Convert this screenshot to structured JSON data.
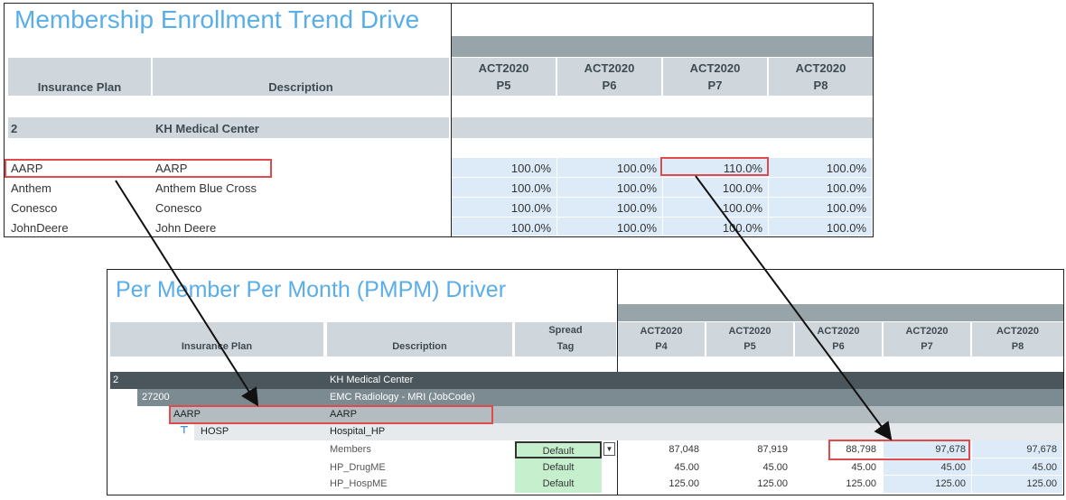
{
  "top": {
    "title": "Membership Enrollment Trend Drive",
    "col_plan": "Insurance Plan",
    "col_desc": "Description",
    "periods": [
      {
        "l1": "ACT2020",
        "l2": "P5"
      },
      {
        "l1": "ACT2020",
        "l2": "P6"
      },
      {
        "l1": "ACT2020",
        "l2": "P7"
      },
      {
        "l1": "ACT2020",
        "l2": "P8"
      }
    ],
    "group": {
      "code": "2",
      "name": "KH Medical Center"
    },
    "rows": [
      {
        "plan": "AARP",
        "desc": "AARP",
        "vals": [
          "100.0%",
          "100.0%",
          "110.0%",
          "100.0%"
        ]
      },
      {
        "plan": "Anthem",
        "desc": "Anthem Blue Cross",
        "vals": [
          "100.0%",
          "100.0%",
          "100.0%",
          "100.0%"
        ]
      },
      {
        "plan": "Conesco",
        "desc": "Conesco",
        "vals": [
          "100.0%",
          "100.0%",
          "100.0%",
          "100.0%"
        ]
      },
      {
        "plan": "JohnDeere",
        "desc": "John Deere",
        "vals": [
          "100.0%",
          "100.0%",
          "100.0%",
          "100.0%"
        ]
      }
    ]
  },
  "bottom": {
    "title": "Per Member Per Month (PMPM) Driver",
    "col_plan": "Insurance Plan",
    "col_desc": "Description",
    "col_spread_1": "Spread",
    "col_spread_2": "Tag",
    "periods": [
      {
        "l1": "ACT2020",
        "l2": "P4"
      },
      {
        "l1": "ACT2020",
        "l2": "P5"
      },
      {
        "l1": "ACT2020",
        "l2": "P6"
      },
      {
        "l1": "ACT2020",
        "l2": "P7"
      },
      {
        "l1": "ACT2020",
        "l2": "P8"
      }
    ],
    "level1": {
      "code": "2",
      "name": "KH Medical Center"
    },
    "level2": {
      "code": "27200",
      "name": "EMC Radiology - MRI (JobCode)"
    },
    "level3": {
      "code": "AARP",
      "name": "AARP"
    },
    "level4": {
      "code": "HOSP",
      "name": "Hospital_HP"
    },
    "rows": [
      {
        "label": "Members",
        "tag": "Default",
        "vals": [
          "87,048",
          "87,919",
          "88,798",
          "97,678",
          "97,678"
        ]
      },
      {
        "label": "HP_DrugME",
        "tag": "Default",
        "vals": [
          "45.00",
          "45.00",
          "45.00",
          "45.00",
          "45.00"
        ]
      },
      {
        "label": "HP_HospME",
        "tag": "Default",
        "vals": [
          "125.00",
          "125.00",
          "125.00",
          "125.00",
          "125.00"
        ]
      }
    ]
  },
  "colors": {
    "title": "#5aaee8",
    "highlight": "#e04a4a",
    "input_cell": "#dcebf7",
    "tag_cell": "#c6efce"
  }
}
